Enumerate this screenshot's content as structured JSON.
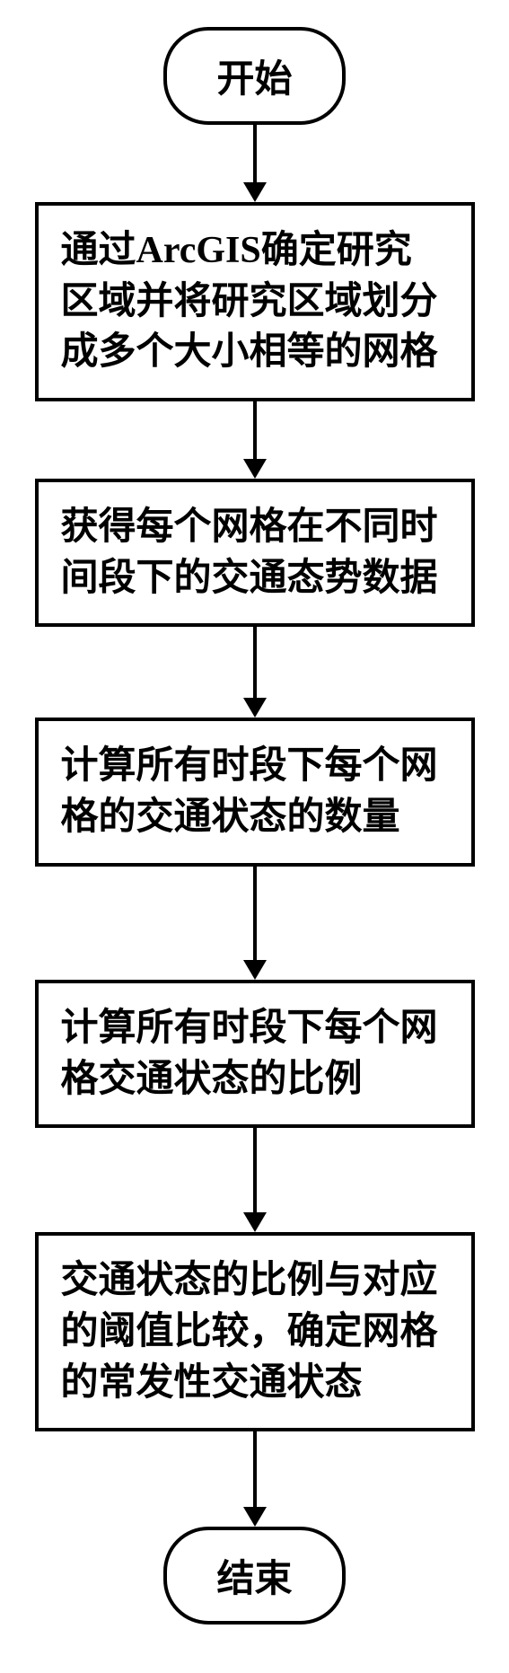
{
  "flowchart": {
    "type": "flowchart",
    "background_color": "#ffffff",
    "border_color": "#000000",
    "border_width": 4,
    "text_color": "#000000",
    "font_size": 42,
    "font_weight": "bold",
    "font_family": "SimSun",
    "terminal_border_radius": 50,
    "process_width": 490,
    "arrow_color": "#000000",
    "arrow_line_width": 4,
    "arrow_head_width": 26,
    "arrow_head_height": 22,
    "nodes": {
      "start": "开始",
      "step1": "通过ArcGIS确定研究区域并将研究区域划分成多个大小相等的网格",
      "step2": "获得每个网格在不同时间段下的交通态势数据",
      "step3": "计算所有时段下每个网格的交通状态的数量",
      "step4": "计算所有时段下每个网格交通状态的比例",
      "step5": "交通状态的比例与对应的阈值比较，确定网格的常发性交通状态",
      "end": "结束"
    },
    "arrow_heights": {
      "a1": 65,
      "a2": 65,
      "a3": 80,
      "a4": 105,
      "a5": 95,
      "a6": 85
    }
  }
}
